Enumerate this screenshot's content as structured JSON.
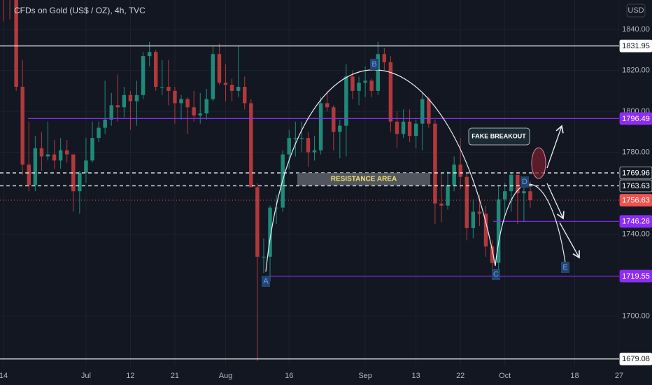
{
  "chart_data": {
    "type": "candlestick",
    "title": "CFDs on Gold (US$ / OZ), 4h, TVC",
    "currency": "USD",
    "up_color": "#1f8a7a",
    "down_color": "#b2393b",
    "x": [
      0,
      1,
      2,
      3,
      4,
      5,
      6,
      7,
      8,
      9,
      10,
      11,
      12,
      13,
      14,
      15,
      16,
      17,
      18,
      19,
      20,
      21,
      22,
      23,
      24,
      25,
      26,
      27,
      28,
      29,
      30,
      31,
      32,
      33,
      34,
      35,
      36,
      37,
      38,
      39,
      40,
      41,
      42,
      43,
      44,
      45,
      46,
      47,
      48,
      49,
      50,
      51,
      52,
      53,
      54,
      55,
      56,
      57,
      58,
      59,
      60,
      61,
      62,
      63,
      64,
      65,
      66,
      67,
      68,
      69,
      70,
      71,
      72,
      73,
      74,
      75,
      76,
      77,
      78,
      79,
      80,
      81,
      82,
      83
    ],
    "open": [
      1877,
      1866,
      1859,
      1812,
      1774,
      1764,
      1782,
      1778,
      1779,
      1776,
      1781,
      1779,
      1761,
      1770,
      1776,
      1787,
      1792,
      1796,
      1803,
      1802,
      1808,
      1805,
      1808,
      1827,
      1829,
      1812,
      1812,
      1810,
      1804,
      1806,
      1802,
      1798,
      1799,
      1806,
      1828,
      1814,
      1813,
      1810,
      1812,
      1804,
      1763,
      1729,
      1729,
      1753,
      1753,
      1779,
      1787,
      1787,
      1787,
      1780,
      1781,
      1804,
      1802,
      1790,
      1793,
      1817,
      1810,
      1814,
      1815,
      1810,
      1828,
      1824,
      1795,
      1789,
      1795,
      1788,
      1794,
      1806,
      1794,
      1755,
      1754,
      1764,
      1774,
      1768,
      1743,
      1751,
      1750,
      1734,
      1726,
      1757,
      1761,
      1769,
      1760,
      1761
    ],
    "high": [
      1879,
      1869,
      1862,
      1825,
      1795,
      1788,
      1790,
      1795,
      1786,
      1787,
      1786,
      1779,
      1771,
      1787,
      1795,
      1795,
      1815,
      1809,
      1818,
      1812,
      1810,
      1815,
      1829,
      1834,
      1830,
      1825,
      1825,
      1812,
      1808,
      1807,
      1810,
      1809,
      1811,
      1832,
      1833,
      1823,
      1816,
      1832,
      1817,
      1806,
      1765,
      1738,
      1754,
      1759,
      1781,
      1791,
      1795,
      1795,
      1790,
      1788,
      1807,
      1810,
      1803,
      1796,
      1823,
      1820,
      1817,
      1822,
      1816,
      1834,
      1831,
      1827,
      1800,
      1801,
      1801,
      1796,
      1809,
      1807,
      1796,
      1770,
      1771,
      1778,
      1787,
      1770,
      1757,
      1759,
      1754,
      1737,
      1764,
      1765,
      1770,
      1769,
      1765,
      1766
    ],
    "low": [
      1844,
      1845,
      1810,
      1769,
      1761,
      1761,
      1771,
      1776,
      1772,
      1772,
      1775,
      1751,
      1750,
      1765,
      1775,
      1785,
      1789,
      1793,
      1795,
      1797,
      1791,
      1793,
      1806,
      1822,
      1810,
      1808,
      1803,
      1794,
      1796,
      1789,
      1795,
      1794,
      1796,
      1805,
      1813,
      1805,
      1805,
      1807,
      1801,
      1763,
      1678,
      1721,
      1717,
      1745,
      1751,
      1772,
      1778,
      1780,
      1773,
      1776,
      1779,
      1800,
      1781,
      1777,
      1778,
      1806,
      1803,
      1807,
      1807,
      1808,
      1820,
      1790,
      1782,
      1787,
      1785,
      1782,
      1781,
      1792,
      1745,
      1746,
      1752,
      1761,
      1762,
      1737,
      1738,
      1744,
      1729,
      1721,
      1722,
      1749,
      1751,
      1745,
      1746,
      1753
    ],
    "close": [
      1866,
      1859,
      1812,
      1774,
      1764,
      1782,
      1778,
      1779,
      1776,
      1781,
      1779,
      1761,
      1770,
      1776,
      1787,
      1792,
      1796,
      1803,
      1802,
      1808,
      1805,
      1808,
      1827,
      1829,
      1812,
      1812,
      1810,
      1804,
      1806,
      1802,
      1798,
      1799,
      1806,
      1828,
      1814,
      1813,
      1810,
      1812,
      1804,
      1763,
      1729,
      1729,
      1753,
      1753,
      1779,
      1787,
      1787,
      1787,
      1780,
      1781,
      1804,
      1802,
      1790,
      1793,
      1817,
      1810,
      1814,
      1815,
      1810,
      1828,
      1824,
      1795,
      1789,
      1795,
      1788,
      1794,
      1806,
      1794,
      1755,
      1754,
      1764,
      1774,
      1768,
      1743,
      1751,
      1750,
      1734,
      1726,
      1757,
      1761,
      1769,
      1760,
      1761,
      1756.63
    ],
    "xlim": [
      -0.55,
      97.0
    ],
    "xticks": [
      {
        "value": 0,
        "label": "14"
      },
      {
        "value": 13,
        "label": "Jul"
      },
      {
        "value": 20,
        "label": "12"
      },
      {
        "value": 27,
        "label": "21"
      },
      {
        "value": 35,
        "label": "Aug"
      },
      {
        "value": 45,
        "label": "16"
      },
      {
        "value": 57,
        "label": "Sep"
      },
      {
        "value": 65,
        "label": "13"
      },
      {
        "value": 72,
        "label": "22"
      },
      {
        "value": 79,
        "label": "Oct"
      },
      {
        "value": 90,
        "label": "18"
      },
      {
        "value": 97,
        "label": "27"
      }
    ],
    "ylim": [
      1675.6,
      1854.4
    ],
    "yticks": [
      {
        "value": 1840,
        "label": "1840.00"
      },
      {
        "value": 1820,
        "label": "1820.00"
      },
      {
        "value": 1800,
        "label": "1800.00"
      },
      {
        "value": 1780,
        "label": "1780.00"
      },
      {
        "value": 1740,
        "label": "1740.00"
      },
      {
        "value": 1700,
        "label": "1700.00"
      }
    ],
    "grid": true,
    "levels": [
      {
        "value": 1831.95,
        "color": "#ffffff",
        "style": "solid",
        "label_bg": "#ffffff",
        "label_color": "#131722"
      },
      {
        "value": 1796.49,
        "color": "#8c2cf5",
        "style": "solid",
        "label_bg": "#8c2cf5",
        "label_color": "#ffffff"
      },
      {
        "value": 1769.96,
        "color": "#ffffff",
        "style": "dashed",
        "label_bg": "#131722",
        "label_color": "#ffffff"
      },
      {
        "value": 1763.63,
        "color": "#ffffff",
        "style": "dashed",
        "label_bg": "#131722",
        "label_color": "#ffffff"
      },
      {
        "value": 1756.63,
        "color": "#ef5350",
        "style": "dotted",
        "label_bg": "#ef5350",
        "label_color": "#ffffff"
      },
      {
        "value": 1746.26,
        "color": "#8c2cf5",
        "style": "solid",
        "label_bg": "#8c2cf5",
        "label_color": "#ffffff"
      },
      {
        "value": 1719.55,
        "color": "#8c2cf5",
        "style": "solid",
        "label_bg": "#8c2cf5",
        "label_color": "#ffffff"
      },
      {
        "value": 1679.08,
        "color": "#ffffff",
        "style": "solid",
        "label_bg": "#ffffff",
        "label_color": "#131722"
      }
    ],
    "annotations": [
      "RESISTANCE AREA",
      "FAKE BREAKOUT"
    ],
    "point_labels": [
      "A",
      "B",
      "C",
      "D",
      "E"
    ]
  }
}
